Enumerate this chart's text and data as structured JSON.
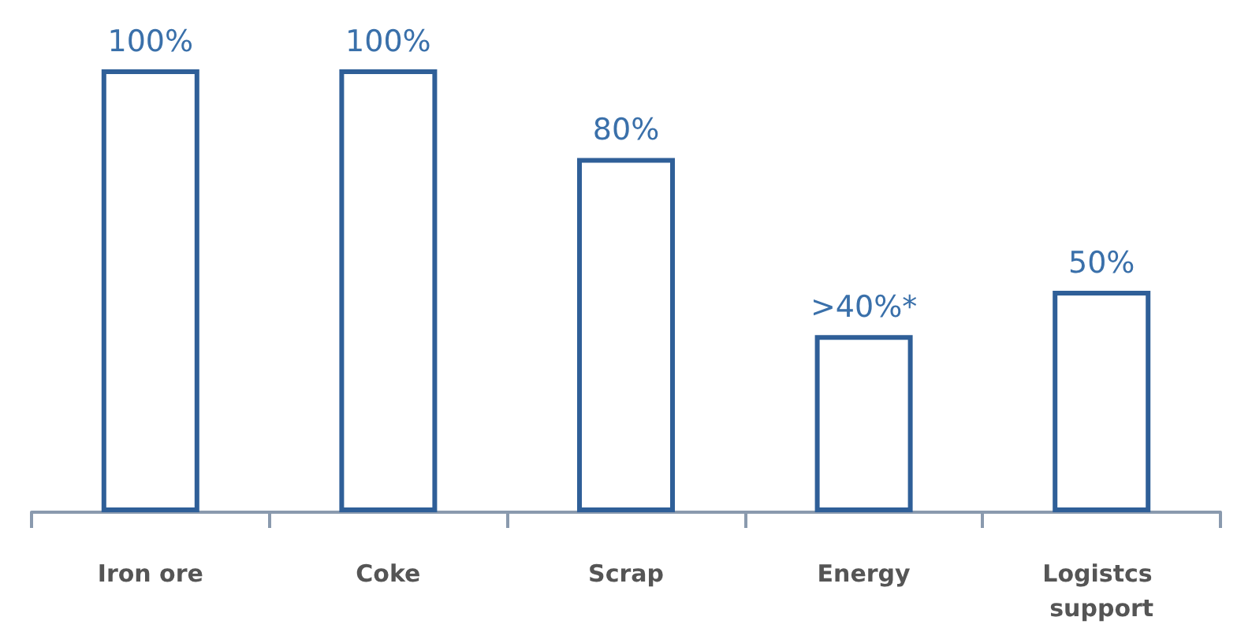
{
  "chart_data": {
    "type": "bar",
    "categories": [
      "Iron ore",
      "Coke",
      "Scrap",
      "Energy",
      "Logistcs support"
    ],
    "values": [
      100,
      100,
      80,
      40,
      50
    ],
    "value_labels": [
      "100%",
      "100%",
      "80%",
      ">40%*",
      "50%"
    ],
    "color": "#2f5f98"
  }
}
